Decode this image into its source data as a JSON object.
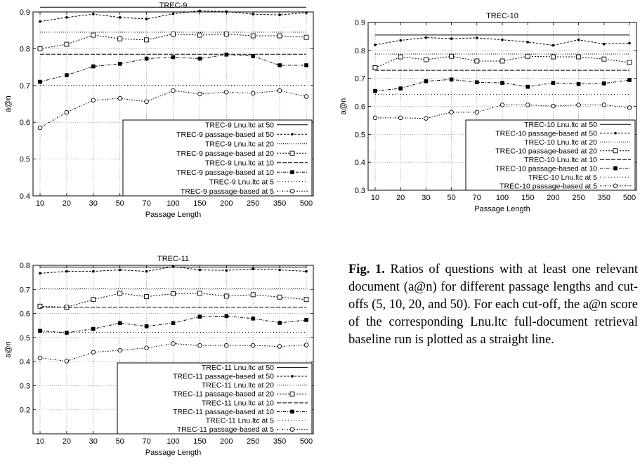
{
  "caption": {
    "fig_label": "Fig. 1.",
    "text": "Ratios of questions with at least one relevant document (a@n) for different passage lengths and cut-offs (5, 10, 20, and 50). For each cut-off, the a@n score of the corresponding Lnu.ltc full-document retrieval baseline run is plotted as a straight line."
  },
  "chart_data": [
    {
      "type": "line",
      "title": "TREC-9",
      "xlabel": "Passage Length",
      "ylabel": "a@n",
      "categories": [
        "10",
        "20",
        "30",
        "50",
        "70",
        "100",
        "150",
        "200",
        "250",
        "350",
        "500"
      ],
      "ylim": [
        0.4,
        0.9
      ],
      "yticks": [
        0.4,
        0.5,
        0.6,
        0.7,
        0.8,
        0.9
      ],
      "grid": true,
      "legend": "bottom-right",
      "series": [
        {
          "name": "TREC-9 Lnu.ltc at 50",
          "values": [
            0.913,
            0.913,
            0.913,
            0.913,
            0.913,
            0.913,
            0.913,
            0.913,
            0.913,
            0.913,
            0.913
          ]
        },
        {
          "name": "TREC-9 passage-based at 50",
          "values": [
            0.874,
            0.885,
            0.894,
            0.885,
            0.881,
            0.895,
            0.903,
            0.901,
            0.894,
            0.892,
            0.898
          ]
        },
        {
          "name": "TREC-9 Lnu.ltc at 20",
          "values": [
            0.845,
            0.845,
            0.845,
            0.845,
            0.845,
            0.845,
            0.845,
            0.845,
            0.845,
            0.845,
            0.845
          ]
        },
        {
          "name": "TREC-9 passage-based at 20",
          "values": [
            0.8,
            0.812,
            0.837,
            0.827,
            0.824,
            0.84,
            0.837,
            0.84,
            0.835,
            0.835,
            0.831
          ]
        },
        {
          "name": "TREC-9 Lnu.ltc at 10",
          "values": [
            0.785,
            0.785,
            0.785,
            0.785,
            0.785,
            0.785,
            0.785,
            0.785,
            0.785,
            0.785,
            0.785
          ]
        },
        {
          "name": "TREC-9 passage-based at 10",
          "values": [
            0.71,
            0.728,
            0.752,
            0.759,
            0.773,
            0.777,
            0.773,
            0.784,
            0.78,
            0.755,
            0.755
          ]
        },
        {
          "name": "TREC-9 Lnu.ltc at 5",
          "values": [
            0.7,
            0.7,
            0.7,
            0.7,
            0.7,
            0.7,
            0.7,
            0.7,
            0.7,
            0.7,
            0.7
          ]
        },
        {
          "name": "TREC-9 passage-based at 5",
          "values": [
            0.585,
            0.627,
            0.66,
            0.665,
            0.656,
            0.686,
            0.677,
            0.682,
            0.679,
            0.686,
            0.67
          ]
        }
      ]
    },
    {
      "type": "line",
      "title": "TREC-10",
      "xlabel": "Passage Length",
      "ylabel": "a@n",
      "categories": [
        "10",
        "20",
        "30",
        "50",
        "70",
        "100",
        "150",
        "200",
        "250",
        "350",
        "500"
      ],
      "ylim": [
        0.3,
        0.9
      ],
      "yticks": [
        0.3,
        0.4,
        0.5,
        0.6,
        0.7,
        0.8,
        0.9
      ],
      "grid": true,
      "legend": "bottom-right",
      "series": [
        {
          "name": "TREC-10 Lnu.ltc at 50",
          "values": [
            0.855,
            0.855,
            0.855,
            0.855,
            0.855,
            0.855,
            0.855,
            0.855,
            0.855,
            0.855,
            0.855
          ]
        },
        {
          "name": "TREC-10 passage-based at 50",
          "values": [
            0.82,
            0.836,
            0.846,
            0.842,
            0.845,
            0.838,
            0.83,
            0.818,
            0.838,
            0.823,
            0.826
          ]
        },
        {
          "name": "TREC-10 Lnu.ltc at 20",
          "values": [
            0.787,
            0.787,
            0.787,
            0.787,
            0.787,
            0.787,
            0.787,
            0.787,
            0.787,
            0.787,
            0.787
          ]
        },
        {
          "name": "TREC-10 passage-based at 20",
          "values": [
            0.738,
            0.777,
            0.767,
            0.779,
            0.762,
            0.762,
            0.779,
            0.777,
            0.777,
            0.769,
            0.757
          ]
        },
        {
          "name": "TREC-10 Lnu.ltc at 10",
          "values": [
            0.729,
            0.729,
            0.729,
            0.729,
            0.729,
            0.729,
            0.729,
            0.729,
            0.729,
            0.729,
            0.729
          ]
        },
        {
          "name": "TREC-10 passage-based at 10",
          "values": [
            0.655,
            0.664,
            0.69,
            0.696,
            0.686,
            0.684,
            0.67,
            0.684,
            0.68,
            0.682,
            0.694
          ]
        },
        {
          "name": "TREC-10 Lnu.ltc at 5",
          "values": [
            0.643,
            0.643,
            0.643,
            0.643,
            0.643,
            0.643,
            0.643,
            0.643,
            0.643,
            0.643,
            0.643
          ]
        },
        {
          "name": "TREC-10 passage-based at 5",
          "values": [
            0.559,
            0.559,
            0.557,
            0.579,
            0.579,
            0.605,
            0.605,
            0.601,
            0.605,
            0.605,
            0.595
          ]
        }
      ]
    },
    {
      "type": "line",
      "title": "TREC-11",
      "xlabel": "Passage Length",
      "ylabel": "a@n",
      "categories": [
        "10",
        "20",
        "30",
        "50",
        "70",
        "100",
        "150",
        "200",
        "250",
        "350",
        "500"
      ],
      "ylim": [
        0.1,
        0.8
      ],
      "yticks": [
        0.2,
        0.3,
        0.4,
        0.5,
        0.6,
        0.7,
        0.8
      ],
      "grid": true,
      "legend": "bottom-right",
      "series": [
        {
          "name": "TREC-11 Lnu.ltc at 50",
          "values": [
            0.793,
            0.793,
            0.793,
            0.793,
            0.793,
            0.793,
            0.793,
            0.793,
            0.793,
            0.793,
            0.793
          ]
        },
        {
          "name": "TREC-11 passage-based at 50",
          "values": [
            0.767,
            0.775,
            0.775,
            0.781,
            0.775,
            0.795,
            0.781,
            0.779,
            0.785,
            0.781,
            0.775
          ]
        },
        {
          "name": "TREC-11 Lnu.ltc at 20",
          "values": [
            0.704,
            0.704,
            0.704,
            0.704,
            0.704,
            0.704,
            0.704,
            0.704,
            0.704,
            0.704,
            0.704
          ]
        },
        {
          "name": "TREC-11 passage-based at 20",
          "values": [
            0.63,
            0.626,
            0.658,
            0.684,
            0.67,
            0.682,
            0.684,
            0.672,
            0.678,
            0.668,
            0.658
          ]
        },
        {
          "name": "TREC-11 Lnu.ltc at 10",
          "values": [
            0.626,
            0.626,
            0.626,
            0.626,
            0.626,
            0.626,
            0.626,
            0.626,
            0.626,
            0.626,
            0.626
          ]
        },
        {
          "name": "TREC-11 passage-based at 10",
          "values": [
            0.528,
            0.52,
            0.536,
            0.56,
            0.547,
            0.56,
            0.587,
            0.589,
            0.579,
            0.561,
            0.573
          ]
        },
        {
          "name": "TREC-11 Lnu.ltc at 5",
          "values": [
            0.522,
            0.522,
            0.522,
            0.522,
            0.522,
            0.522,
            0.522,
            0.522,
            0.522,
            0.522,
            0.522
          ]
        },
        {
          "name": "TREC-11 passage-based at 5",
          "values": [
            0.415,
            0.402,
            0.439,
            0.447,
            0.457,
            0.475,
            0.467,
            0.467,
            0.467,
            0.463,
            0.469
          ]
        }
      ]
    }
  ]
}
